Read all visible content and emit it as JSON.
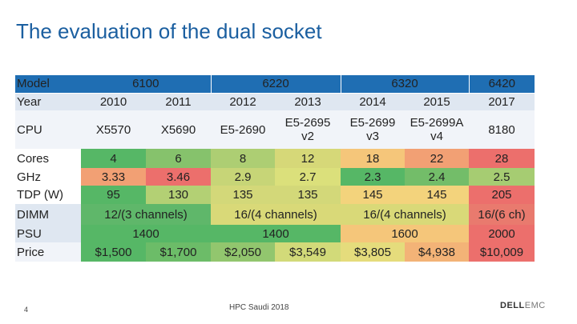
{
  "title": "The evaluation of the dual socket",
  "table": {
    "header": {
      "label": "Model",
      "groups": [
        "6100",
        "6220",
        "6320",
        "6420"
      ]
    },
    "year": {
      "label": "Year",
      "values": [
        "2010",
        "2011",
        "2012",
        "2013",
        "2014",
        "2015",
        "2017"
      ]
    },
    "cpu": {
      "label": "CPU",
      "values": [
        {
          "l1": "X5570",
          "l2": ""
        },
        {
          "l1": "X5690",
          "l2": ""
        },
        {
          "l1": "E5-2690",
          "l2": ""
        },
        {
          "l1": "E5-2695",
          "l2": "v2"
        },
        {
          "l1": "E5-2699",
          "l2": "v3"
        },
        {
          "l1": "E5-2699A",
          "l2": "v4"
        },
        {
          "l1": "8180",
          "l2": ""
        }
      ]
    },
    "cores": {
      "label": "Cores",
      "values": [
        "4",
        "6",
        "8",
        "12",
        "18",
        "22",
        "28"
      ]
    },
    "ghz": {
      "label": "GHz",
      "values": [
        "3.33",
        "3.46",
        "2.9",
        "2.7",
        "2.3",
        "2.4",
        "2.5"
      ]
    },
    "tdp": {
      "label": "TDP (W)",
      "values": [
        "95",
        "130",
        "135",
        "135",
        "145",
        "145",
        "205"
      ]
    },
    "dimm": {
      "label": "DIMM",
      "values": [
        "12/(3 channels)",
        "16/(4 channels)",
        "16/(4 channels)",
        "16/(6 ch)"
      ]
    },
    "psu": {
      "label": "PSU",
      "values": [
        "1400",
        "1400",
        "1600",
        "2000"
      ]
    },
    "price": {
      "label": "Price",
      "values": [
        "$1,500",
        "$1,700",
        "$2,050",
        "$3,549",
        "$3,805",
        "$4,938",
        "$10,009"
      ]
    }
  },
  "colors": {
    "cores": [
      "#56b766",
      "#86c26c",
      "#adce73",
      "#d6d878",
      "#f5c67a",
      "#f2a074",
      "#ec6f6c"
    ],
    "ghz": [
      "#f2a074",
      "#ec6f6c",
      "#c7d577",
      "#dbe07b",
      "#56b766",
      "#73bd69",
      "#a6cc72"
    ],
    "tdp": [
      "#56b766",
      "#b3d074",
      "#d3d879",
      "#d3d879",
      "#f3d37c",
      "#f3d37c",
      "#ec6f6c"
    ],
    "dimm": [
      "#5fb76a",
      "#d9d978",
      "#d9d978",
      "#e97a6e"
    ],
    "psu": [
      "#56b766",
      "#56b766",
      "#f5c67a",
      "#ec6f6c"
    ],
    "price": [
      "#56b766",
      "#6cbc68",
      "#92c66e",
      "#d2da79",
      "#e5dc7c",
      "#f3b377",
      "#ec6f6c"
    ]
  },
  "footer": {
    "page_number": "4",
    "center_text": "HPC Saudi 2018",
    "logo_a": "DELL",
    "logo_b": "EMC"
  }
}
